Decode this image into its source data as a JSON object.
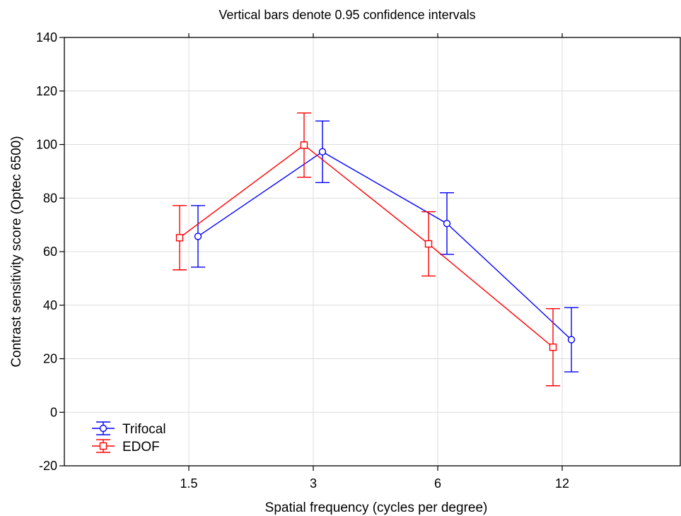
{
  "chart_data": {
    "type": "line",
    "title": "Vertical bars denote 0.95 confidence intervals",
    "xlabel": "Spatial frequency (cycles per degree)",
    "ylabel": "Contrast sensitivity score (Optec 6500)",
    "categories": [
      "1.5",
      "3",
      "6",
      "12"
    ],
    "ylim": [
      -20,
      140
    ],
    "yticks": [
      "-20",
      "0",
      "20",
      "40",
      "60",
      "80",
      "100",
      "120",
      "140"
    ],
    "grid": true,
    "legend_position": "bottom-left",
    "series": [
      {
        "name": "Trifocal",
        "color": "#0000ff",
        "marker": "circle",
        "values": [
          65.7,
          97.3,
          70.5,
          27.1
        ],
        "ci_low": [
          54.2,
          85.8,
          59.0,
          15.1
        ],
        "ci_high": [
          77.2,
          108.8,
          82.0,
          39.1
        ]
      },
      {
        "name": "EDOF",
        "color": "#ff0000",
        "marker": "square",
        "values": [
          65.2,
          99.8,
          62.9,
          24.3
        ],
        "ci_low": [
          53.2,
          87.8,
          50.9,
          9.9
        ],
        "ci_high": [
          77.2,
          111.8,
          74.9,
          38.7
        ]
      }
    ]
  }
}
